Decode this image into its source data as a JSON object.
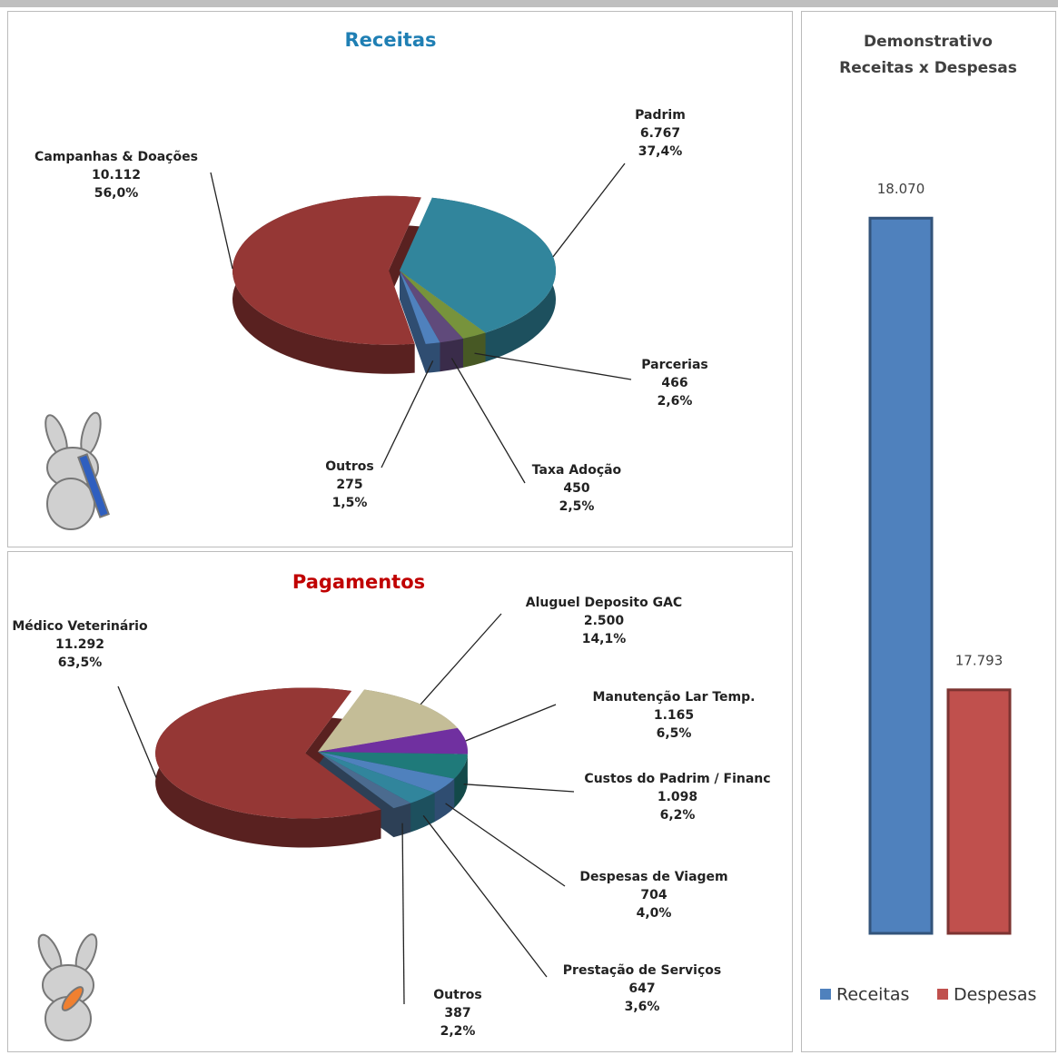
{
  "chart_data": [
    {
      "type": "pie",
      "title": "Receitas",
      "categories": [
        "Padrim",
        "Parcerias",
        "Taxa Adoção",
        "Outros",
        "Campanhas & Doações"
      ],
      "values": [
        6767,
        466,
        450,
        275,
        10112
      ],
      "value_labels": [
        "6.767",
        "466",
        "450",
        "275",
        "10.112"
      ],
      "percents": [
        37.4,
        2.6,
        2.5,
        1.5,
        56.0
      ],
      "percent_labels": [
        "37,4%",
        "2,6%",
        "2,5%",
        "1,5%",
        "56,0%"
      ],
      "colors": [
        "#31859c",
        "#77933c",
        "#604a7b",
        "#4f81bd",
        "#953735"
      ]
    },
    {
      "type": "pie",
      "title": "Pagamentos",
      "categories": [
        "Aluguel Deposito GAC",
        "Manutenção Lar Temp.",
        "Custos do Padrim / Financ",
        "Despesas de Viagem",
        "Prestação de Serviços",
        "Outros",
        "Médico Veterinário"
      ],
      "values": [
        2500,
        1165,
        1098,
        704,
        647,
        387,
        11292
      ],
      "value_labels": [
        "2.500",
        "1.165",
        "1.098",
        "704",
        "647",
        "387",
        "11.292"
      ],
      "percents": [
        14.1,
        6.5,
        6.2,
        4.0,
        3.6,
        2.2,
        63.5
      ],
      "percent_labels": [
        "14,1%",
        "6,5%",
        "6,2%",
        "4,0%",
        "3,6%",
        "2,2%",
        "63,5%"
      ],
      "colors": [
        "#c4bd97",
        "#7030a0",
        "#1f7a7a",
        "#4f81bd",
        "#31859c",
        "#4b6b8f",
        "#953735"
      ]
    },
    {
      "type": "bar",
      "title": "Demonstrativo Receitas x Despesas",
      "series": [
        {
          "name": "Receitas",
          "color": "#4f81bd",
          "values": [
            18070
          ],
          "value_labels": [
            "18.070"
          ]
        },
        {
          "name": "Despesas",
          "color": "#c0504d",
          "values": [
            17793
          ],
          "value_labels": [
            "17.793"
          ]
        }
      ],
      "ylim": [
        17650,
        18100
      ]
    }
  ]
}
